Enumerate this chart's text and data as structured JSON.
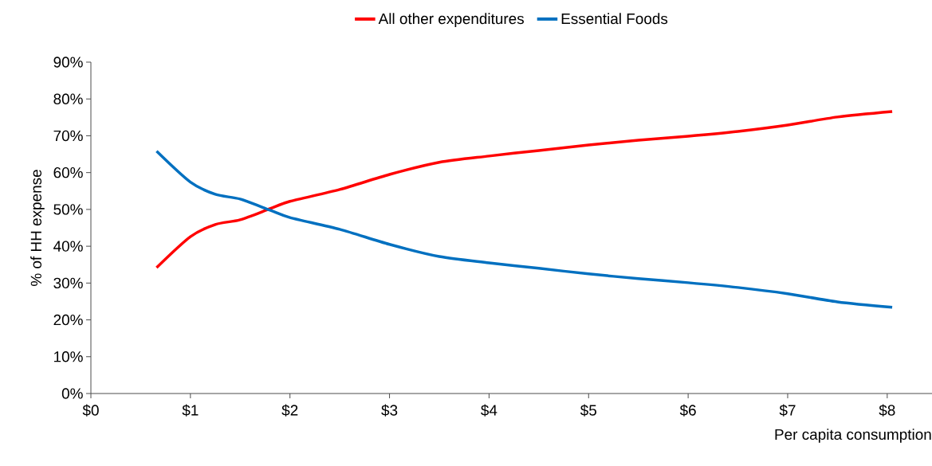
{
  "chart_data": {
    "type": "line",
    "xlabel": "Per capita consumption",
    "ylabel": "% of HH expense",
    "x": [
      0.66,
      1.0,
      1.25,
      1.5,
      1.8,
      2.0,
      2.5,
      3.0,
      3.5,
      4.0,
      4.5,
      5.0,
      5.5,
      6.0,
      6.5,
      7.0,
      7.5,
      8.05
    ],
    "series": [
      {
        "name": "All other expenditures",
        "color": "#ff0000",
        "values": [
          34.2,
          42.6,
          45.9,
          47.2,
          50.2,
          52.2,
          55.4,
          59.5,
          62.8,
          64.5,
          66,
          67.5,
          68.8,
          69.9,
          71.2,
          72.9,
          75.1,
          76.6
        ]
      },
      {
        "name": "Essential Foods",
        "color": "#0070c0",
        "values": [
          65.8,
          57.4,
          54.1,
          52.8,
          49.8,
          47.8,
          44.6,
          40.5,
          37.2,
          35.5,
          34,
          32.5,
          31.2,
          30.1,
          28.8,
          27.1,
          24.9,
          23.4
        ]
      }
    ],
    "xlim": [
      0,
      8.45
    ],
    "ylim": [
      0,
      90
    ],
    "xticks": [
      {
        "value": 0,
        "label": "$0"
      },
      {
        "value": 1,
        "label": "$1"
      },
      {
        "value": 2,
        "label": "$2"
      },
      {
        "value": 3,
        "label": "$3"
      },
      {
        "value": 4,
        "label": "$4"
      },
      {
        "value": 5,
        "label": "$5"
      },
      {
        "value": 6,
        "label": "$6"
      },
      {
        "value": 7,
        "label": "$7"
      },
      {
        "value": 8,
        "label": "$8"
      }
    ],
    "yticks": [
      {
        "value": 0,
        "label": "0%"
      },
      {
        "value": 10,
        "label": "10%"
      },
      {
        "value": 20,
        "label": "20%"
      },
      {
        "value": 30,
        "label": "30%"
      },
      {
        "value": 40,
        "label": "40%"
      },
      {
        "value": 50,
        "label": "50%"
      },
      {
        "value": 60,
        "label": "60%"
      },
      {
        "value": 70,
        "label": "70%"
      },
      {
        "value": 80,
        "label": "80%"
      },
      {
        "value": 90,
        "label": "90%"
      }
    ],
    "legend": "top",
    "line_style": "solid"
  }
}
